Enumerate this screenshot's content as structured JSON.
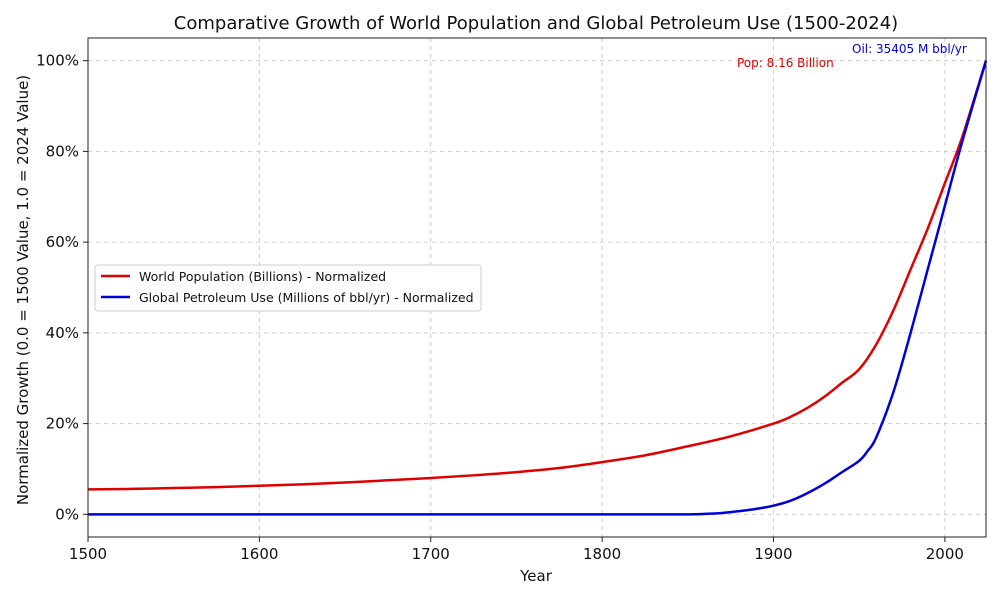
{
  "chart_data": {
    "type": "line",
    "title": "Comparative Growth of World Population and Global Petroleum Use (1500-2024)",
    "xlabel": "Year",
    "ylabel": "Normalized Growth (0.0 = 1500 Value, 1.0 = 2024 Value)",
    "xlim": [
      1500,
      2024
    ],
    "ylim": [
      -0.05,
      1.05
    ],
    "xticks": [
      1500,
      1600,
      1700,
      1800,
      1900,
      2000
    ],
    "xtick_labels": [
      "1500",
      "1600",
      "1700",
      "1800",
      "1900",
      "2000"
    ],
    "yticks": [
      0,
      0.2,
      0.4,
      0.6,
      0.8,
      1.0
    ],
    "ytick_labels": [
      "0%",
      "20%",
      "40%",
      "60%",
      "80%",
      "100%"
    ],
    "grid": true,
    "legend_position": "center-left",
    "series": [
      {
        "name": "World Population (Billions) - Normalized",
        "color": "#e00000",
        "x": [
          1500,
          1525,
          1550,
          1575,
          1600,
          1625,
          1650,
          1675,
          1700,
          1725,
          1750,
          1775,
          1800,
          1825,
          1850,
          1875,
          1900,
          1910,
          1920,
          1930,
          1940,
          1950,
          1960,
          1970,
          1980,
          1990,
          2000,
          2010,
          2024
        ],
        "values": [
          0.055,
          0.056,
          0.058,
          0.06,
          0.063,
          0.066,
          0.07,
          0.075,
          0.08,
          0.086,
          0.093,
          0.102,
          0.115,
          0.13,
          0.15,
          0.172,
          0.2,
          0.215,
          0.235,
          0.26,
          0.29,
          0.32,
          0.375,
          0.45,
          0.54,
          0.63,
          0.73,
          0.83,
          1.0
        ]
      },
      {
        "name": "Global Petroleum Use (Millions of bbl/yr) - Normalized",
        "color": "#0000dd",
        "x": [
          1500,
          1600,
          1700,
          1800,
          1850,
          1860,
          1870,
          1880,
          1890,
          1900,
          1910,
          1920,
          1930,
          1940,
          1950,
          1955,
          1960,
          1970,
          1980,
          1990,
          2000,
          2010,
          2024
        ],
        "values": [
          0,
          0,
          0,
          0,
          0,
          0.001,
          0.003,
          0.007,
          0.012,
          0.019,
          0.03,
          0.047,
          0.068,
          0.093,
          0.118,
          0.14,
          0.17,
          0.27,
          0.4,
          0.54,
          0.68,
          0.82,
          1.0
        ]
      }
    ],
    "annotations": [
      {
        "text": "Pop: 8.16 Billion",
        "color": "#e00000"
      },
      {
        "text": "Oil: 35405 M bbl/yr",
        "color": "#0000dd"
      }
    ]
  }
}
